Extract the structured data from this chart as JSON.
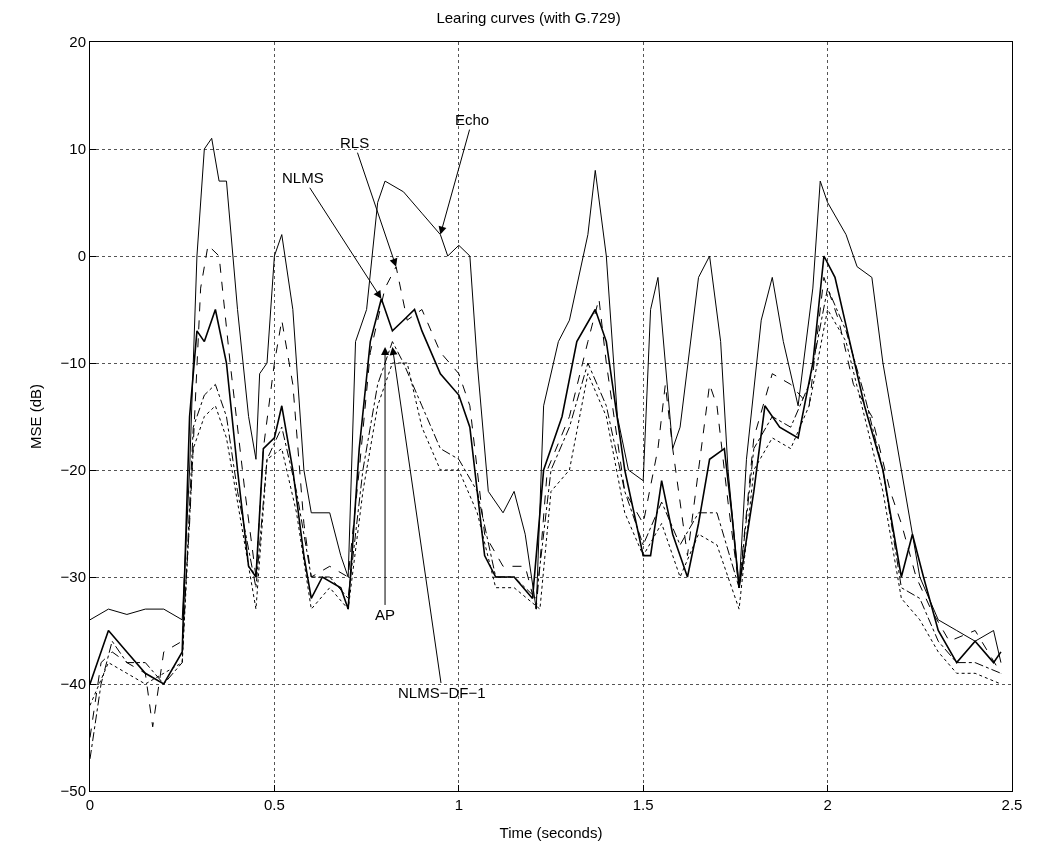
{
  "chart_data": {
    "type": "line",
    "title": "Learing curves (with G.729)",
    "xlabel": "Time (seconds)",
    "ylabel": "MSE (dB)",
    "xlim": [
      0,
      2.5
    ],
    "xticks": [
      0,
      0.5,
      1,
      1.5,
      2,
      2.5
    ],
    "ylim": [
      -50,
      20
    ],
    "yticks": [
      -50,
      -40,
      -30,
      -20,
      -10,
      0,
      10,
      20
    ],
    "grid": true,
    "marker": "none",
    "series": [
      {
        "color": "#000000",
        "line_style": "solid",
        "x": [
          0,
          0.05,
          0.1,
          0.15,
          0.2,
          0.25,
          0.27,
          0.29,
          0.31,
          0.33,
          0.35,
          0.37,
          0.4,
          0.43,
          0.45,
          0.46,
          0.48,
          0.5,
          0.52,
          0.55,
          0.58,
          0.6,
          0.65,
          0.68,
          0.7,
          0.72,
          0.75,
          0.78,
          0.8,
          0.85,
          0.9,
          0.95,
          0.97,
          1.0,
          1.03,
          1.05,
          1.08,
          1.12,
          1.15,
          1.18,
          1.21,
          1.23,
          1.27,
          1.3,
          1.35,
          1.37,
          1.4,
          1.43,
          1.46,
          1.5,
          1.52,
          1.54,
          1.56,
          1.58,
          1.6,
          1.65,
          1.68,
          1.71,
          1.73,
          1.76,
          1.78,
          1.82,
          1.85,
          1.88,
          1.92,
          1.96,
          1.98,
          2.0,
          2.05,
          2.08,
          2.12,
          2.15,
          2.2,
          2.25,
          2.3,
          2.35,
          2.4,
          2.45,
          2.47
        ],
        "values": [
          -34,
          -33,
          -33.5,
          -33,
          -33,
          -34,
          -20,
          0,
          10,
          11,
          7,
          7,
          -5,
          -15,
          -19,
          -11,
          -10,
          0,
          2,
          -5,
          -20,
          -24,
          -24,
          -28,
          -30,
          -8,
          -5,
          5,
          7,
          6,
          4,
          2,
          0,
          1,
          0,
          -10,
          -22,
          -24,
          -22,
          -26,
          -33,
          -14,
          -8,
          -6,
          2,
          8,
          0,
          -15,
          -20,
          -21,
          -5,
          -2,
          -10,
          -18,
          -16,
          -2,
          0,
          -8,
          -20,
          -31,
          -19,
          -6,
          -2,
          -8,
          -14,
          -3,
          7,
          5,
          2,
          -1,
          -2,
          -10,
          -20,
          -30,
          -34,
          -35,
          -36,
          -35,
          -38
        ]
      },
      {
        "color": "#000000",
        "line_style": "dashed",
        "x": [
          0,
          0.03,
          0.06,
          0.1,
          0.15,
          0.17,
          0.2,
          0.25,
          0.27,
          0.3,
          0.32,
          0.35,
          0.38,
          0.42,
          0.45,
          0.47,
          0.5,
          0.52,
          0.55,
          0.58,
          0.6,
          0.65,
          0.7,
          0.73,
          0.76,
          0.8,
          0.83,
          0.86,
          0.9,
          0.95,
          1.0,
          1.03,
          1.07,
          1.12,
          1.18,
          1.21,
          1.24,
          1.3,
          1.35,
          1.38,
          1.4,
          1.45,
          1.5,
          1.54,
          1.56,
          1.58,
          1.62,
          1.65,
          1.68,
          1.7,
          1.73,
          1.76,
          1.8,
          1.85,
          1.9,
          1.95,
          1.99,
          2.03,
          2.07,
          2.12,
          2.17,
          2.2,
          2.24,
          2.28,
          2.33,
          2.4,
          2.47
        ],
        "values": [
          -45,
          -38,
          -37,
          -38,
          -39,
          -44,
          -37,
          -36,
          -25,
          -3,
          1,
          0,
          -10,
          -22,
          -30,
          -18,
          -10,
          -6,
          -12,
          -25,
          -30,
          -29,
          -30,
          -20,
          -9,
          -3,
          -1,
          -6,
          -5,
          -9,
          -11,
          -14,
          -26,
          -29,
          -29,
          -33,
          -20,
          -15,
          -8,
          -4,
          -10,
          -22,
          -25,
          -18,
          -12,
          -18,
          -28,
          -20,
          -12,
          -14,
          -23,
          -31,
          -17,
          -11,
          -12,
          -14,
          -2,
          -6,
          -12,
          -15,
          -22,
          -25,
          -30,
          -33,
          -36,
          -35,
          -39
        ]
      },
      {
        "color": "#000000",
        "line_style": "solid",
        "x": [
          0,
          0.02,
          0.05,
          0.1,
          0.15,
          0.2,
          0.25,
          0.27,
          0.29,
          0.31,
          0.34,
          0.37,
          0.4,
          0.43,
          0.45,
          0.47,
          0.5,
          0.52,
          0.55,
          0.58,
          0.6,
          0.63,
          0.68,
          0.7,
          0.73,
          0.76,
          0.79,
          0.82,
          0.85,
          0.88,
          0.9,
          0.95,
          1.0,
          1.03,
          1.07,
          1.1,
          1.15,
          1.2,
          1.23,
          1.28,
          1.32,
          1.37,
          1.4,
          1.45,
          1.5,
          1.52,
          1.55,
          1.58,
          1.62,
          1.65,
          1.68,
          1.72,
          1.74,
          1.76,
          1.8,
          1.83,
          1.87,
          1.92,
          1.96,
          1.99,
          2.02,
          2.06,
          2.1,
          2.15,
          2.2,
          2.23,
          2.26,
          2.3,
          2.35,
          2.4,
          2.45,
          2.47
        ],
        "values": [
          -40,
          -38,
          -35,
          -37,
          -39,
          -40,
          -37,
          -15,
          -7,
          -8,
          -5,
          -10,
          -20,
          -29,
          -30,
          -18,
          -17,
          -14,
          -20,
          -28,
          -32,
          -30,
          -31,
          -33,
          -18,
          -8,
          -4,
          -7,
          -6,
          -5,
          -7,
          -11,
          -13,
          -16,
          -28,
          -30,
          -30,
          -32,
          -20,
          -15,
          -8,
          -5,
          -8,
          -20,
          -28,
          -28,
          -21,
          -26,
          -30,
          -25,
          -19,
          -18,
          -24,
          -31,
          -22,
          -14,
          -16,
          -17,
          -10,
          0,
          -2,
          -8,
          -14,
          -20,
          -30,
          -26,
          -30,
          -35,
          -38,
          -36,
          -38,
          -37
        ]
      },
      {
        "color": "#000000",
        "line_style": "dotted",
        "x": [
          0,
          0.05,
          0.1,
          0.15,
          0.2,
          0.25,
          0.28,
          0.31,
          0.34,
          0.37,
          0.4,
          0.45,
          0.48,
          0.52,
          0.56,
          0.6,
          0.65,
          0.7,
          0.74,
          0.78,
          0.82,
          0.86,
          0.9,
          0.95,
          1.0,
          1.05,
          1.1,
          1.15,
          1.22,
          1.25,
          1.3,
          1.35,
          1.4,
          1.45,
          1.5,
          1.55,
          1.6,
          1.65,
          1.7,
          1.76,
          1.8,
          1.85,
          1.9,
          1.95,
          2.0,
          2.05,
          2.1,
          2.15,
          2.2,
          2.25,
          2.3,
          2.35,
          2.4,
          2.47
        ],
        "values": [
          -42,
          -38,
          -39,
          -40,
          -39,
          -38,
          -18,
          -15,
          -14,
          -17,
          -23,
          -33,
          -19,
          -18,
          -24,
          -33,
          -31,
          -33,
          -22,
          -14,
          -10,
          -10,
          -16,
          -20,
          -20,
          -24,
          -31,
          -31,
          -33,
          -22,
          -20,
          -11,
          -15,
          -24,
          -28,
          -25,
          -30,
          -26,
          -27,
          -33,
          -20,
          -17,
          -18,
          -14,
          -5,
          -8,
          -15,
          -22,
          -32,
          -34,
          -37,
          -39,
          -39,
          -40
        ]
      },
      {
        "color": "#000000",
        "line_style": "dashdot",
        "x": [
          0,
          0.03,
          0.06,
          0.1,
          0.15,
          0.2,
          0.25,
          0.28,
          0.31,
          0.34,
          0.37,
          0.4,
          0.45,
          0.48,
          0.52,
          0.56,
          0.6,
          0.65,
          0.7,
          0.74,
          0.78,
          0.82,
          0.85,
          0.9,
          0.95,
          1.0,
          1.05,
          1.1,
          1.15,
          1.21,
          1.25,
          1.3,
          1.35,
          1.4,
          1.45,
          1.5,
          1.55,
          1.6,
          1.65,
          1.7,
          1.76,
          1.8,
          1.85,
          1.9,
          1.95,
          2.0,
          2.05,
          2.1,
          2.15,
          2.2,
          2.25,
          2.3,
          2.35,
          2.4,
          2.47
        ],
        "values": [
          -47,
          -40,
          -36,
          -38,
          -38,
          -40,
          -38,
          -16,
          -13,
          -12,
          -15,
          -22,
          -31,
          -19,
          -16,
          -22,
          -30,
          -30,
          -32,
          -20,
          -12,
          -8,
          -10,
          -14,
          -18,
          -19,
          -22,
          -30,
          -30,
          -32,
          -20,
          -16,
          -10,
          -14,
          -22,
          -27,
          -23,
          -27,
          -24,
          -24,
          -31,
          -18,
          -15,
          -16,
          -12,
          -3,
          -7,
          -13,
          -20,
          -31,
          -32,
          -36,
          -38,
          -38,
          -39
        ]
      }
    ],
    "annotations": [
      {
        "text": "Echo",
        "x": 0.95,
        "y": 2
      },
      {
        "text": "RLS",
        "x": 0.83,
        "y": -1
      },
      {
        "text": "NLMS",
        "x": 0.79,
        "y": -4
      },
      {
        "text": "AP",
        "x": 0.8,
        "y": -8.5
      },
      {
        "text": "NLMS−DF−1",
        "x": 0.82,
        "y": -8.5
      }
    ]
  }
}
